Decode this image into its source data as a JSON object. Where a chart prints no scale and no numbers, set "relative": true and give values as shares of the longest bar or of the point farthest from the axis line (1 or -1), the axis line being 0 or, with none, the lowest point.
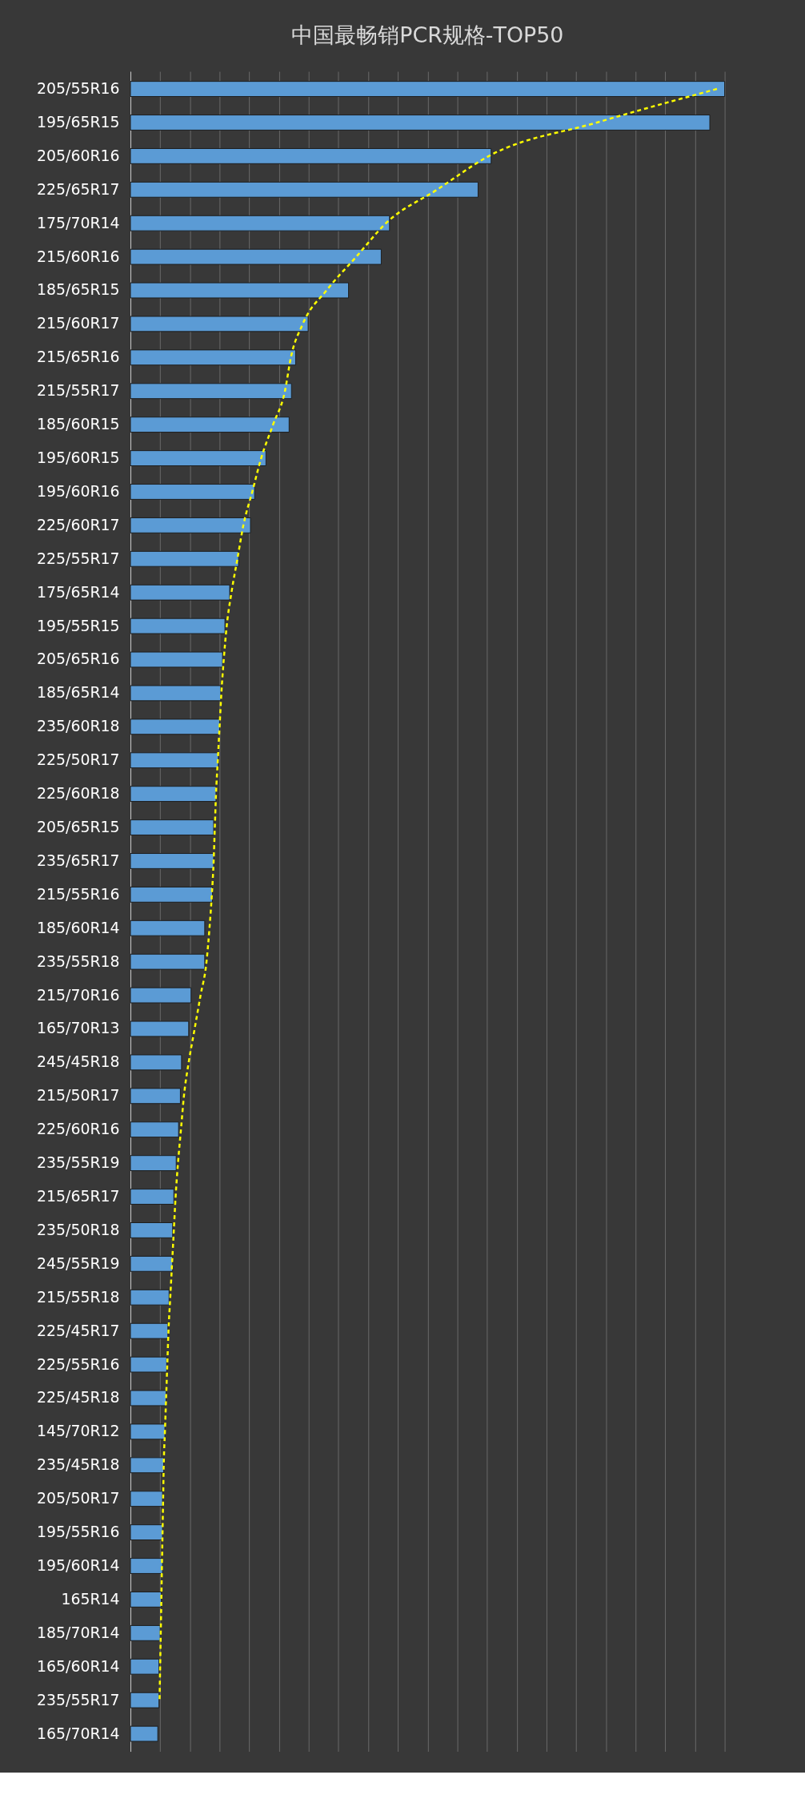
{
  "chart_data": {
    "type": "bar",
    "orientation": "horizontal",
    "relative": true,
    "title": "中国最畅销PCR规格-TOP50",
    "grid": "x",
    "categories": [
      "205/55R16",
      "195/65R15",
      "205/60R16",
      "225/65R17",
      "175/70R14",
      "215/60R16",
      "185/65R15",
      "215/60R17",
      "215/65R16",
      "215/55R17",
      "185/60R15",
      "195/60R15",
      "195/60R16",
      "225/60R17",
      "225/55R17",
      "175/65R14",
      "195/55R15",
      "205/65R16",
      "185/65R14",
      "235/60R18",
      "225/50R17",
      "225/60R18",
      "205/65R15",
      "235/65R17",
      "215/55R16",
      "185/60R14",
      "235/55R18",
      "215/70R16",
      "165/70R13",
      "245/45R18",
      "215/50R17",
      "225/60R16",
      "235/55R19",
      "215/65R17",
      "235/50R18",
      "245/55R19",
      "215/55R18",
      "225/45R17",
      "225/55R16",
      "225/45R18",
      "145/70R12",
      "235/45R18",
      "205/50R17",
      "195/55R16",
      "195/60R14",
      "165R14",
      "185/70R14",
      "165/60R14",
      "235/55R17",
      "165/70R14"
    ],
    "series": [
      {
        "color": "#5b9bd5",
        "values": [
          1.0,
          0.975,
          0.607,
          0.585,
          0.436,
          0.422,
          0.367,
          0.299,
          0.278,
          0.271,
          0.267,
          0.228,
          0.209,
          0.202,
          0.182,
          0.167,
          0.159,
          0.155,
          0.152,
          0.15,
          0.148,
          0.144,
          0.14,
          0.14,
          0.138,
          0.125,
          0.125,
          0.102,
          0.098,
          0.086,
          0.084,
          0.081,
          0.077,
          0.073,
          0.071,
          0.071,
          0.065,
          0.063,
          0.061,
          0.06,
          0.058,
          0.056,
          0.054,
          0.054,
          0.054,
          0.052,
          0.05,
          0.048,
          0.048,
          0.046
        ]
      },
      {
        "type": "line",
        "color": "#ffff00",
        "line_style": "dashed",
        "values": [
          0.987,
          0.785,
          0.603,
          0.516,
          0.43,
          0.38,
          0.33,
          0.29,
          0.27,
          0.26,
          0.24,
          0.22,
          0.205,
          0.19,
          0.18,
          0.17,
          0.162,
          0.157,
          0.153,
          0.15,
          0.147,
          0.144,
          0.142,
          0.14,
          0.137,
          0.133,
          0.128,
          0.118,
          0.108,
          0.098,
          0.09,
          0.085,
          0.08,
          0.076,
          0.073,
          0.07,
          0.067,
          0.064,
          0.062,
          0.06,
          0.058,
          0.056,
          0.055,
          0.054,
          0.053,
          0.052,
          0.051,
          0.05,
          0.049,
          null
        ]
      }
    ]
  }
}
